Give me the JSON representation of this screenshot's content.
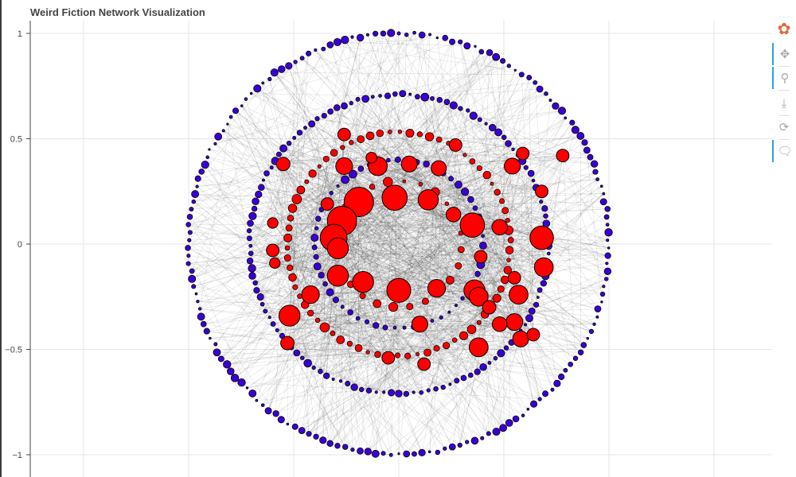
{
  "chart_data": {
    "type": "scatter",
    "title": "Weird Fiction Network Visualization",
    "xlim": [
      -1.8,
      1.8
    ],
    "ylim": [
      -1.05,
      1.05
    ],
    "y_ticks": [
      1,
      0.5,
      0,
      -0.5,
      -1
    ],
    "y_tick_labels": [
      "1",
      "0.5",
      "0",
      "−0.5",
      "−1"
    ],
    "x_grid": [
      -1.5,
      -1.0,
      -0.5,
      0,
      0.5,
      1.0,
      1.5
    ],
    "grid": true,
    "edges": {
      "color": "#000000",
      "count_approx": 1500
    },
    "node_series": [
      {
        "color": "#ff0000",
        "outline": "#000000",
        "description": "red nodes, sized by degree"
      },
      {
        "color": "#3a00d6",
        "outline": "#000000",
        "description": "blue nodes, small"
      }
    ],
    "layout": "shell",
    "shells": [
      {
        "radius": 1.0,
        "count": 170,
        "color": "#3a00d6"
      },
      {
        "radius": 0.71,
        "count": 125,
        "color": "#3a00d6"
      },
      {
        "radius": 0.53,
        "count": 70,
        "color": "#ff0000"
      },
      {
        "radius": 0.4,
        "count": 55,
        "color": "#3a00d6"
      },
      {
        "radius": 0.3,
        "count": 24,
        "color": "#ff0000"
      }
    ],
    "large_nodes": [
      {
        "x": -0.26,
        "y": 0.37,
        "r": 0.04
      },
      {
        "x": -0.1,
        "y": 0.37,
        "r": 0.045
      },
      {
        "x": 0.05,
        "y": 0.38,
        "r": 0.038
      },
      {
        "x": 0.19,
        "y": 0.36,
        "r": 0.036
      },
      {
        "x": -0.19,
        "y": 0.2,
        "r": 0.07
      },
      {
        "x": -0.02,
        "y": 0.22,
        "r": 0.06
      },
      {
        "x": 0.14,
        "y": 0.21,
        "r": 0.048
      },
      {
        "x": 0.26,
        "y": 0.14,
        "r": 0.035
      },
      {
        "x": -0.27,
        "y": 0.11,
        "r": 0.07
      },
      {
        "x": -0.31,
        "y": 0.03,
        "r": 0.064
      },
      {
        "x": -0.29,
        "y": -0.02,
        "r": 0.05
      },
      {
        "x": 0.35,
        "y": 0.09,
        "r": 0.058
      },
      {
        "x": 0.68,
        "y": 0.03,
        "r": 0.056
      },
      {
        "x": 0.48,
        "y": 0.08,
        "r": 0.037
      },
      {
        "x": -0.29,
        "y": -0.15,
        "r": 0.05
      },
      {
        "x": -0.42,
        "y": -0.24,
        "r": 0.042
      },
      {
        "x": 0.0,
        "y": -0.22,
        "r": 0.057
      },
      {
        "x": -0.17,
        "y": -0.18,
        "r": 0.05
      },
      {
        "x": 0.36,
        "y": -0.22,
        "r": 0.05
      },
      {
        "x": 0.18,
        "y": -0.21,
        "r": 0.042
      },
      {
        "x": 0.69,
        "y": -0.11,
        "r": 0.045
      },
      {
        "x": 0.38,
        "y": -0.25,
        "r": 0.045
      },
      {
        "x": -0.52,
        "y": -0.34,
        "r": 0.05
      },
      {
        "x": 0.57,
        "y": -0.24,
        "r": 0.045
      },
      {
        "x": -0.53,
        "y": -0.47,
        "r": 0.032
      },
      {
        "x": 0.55,
        "y": -0.37,
        "r": 0.04
      },
      {
        "x": 0.1,
        "y": -0.38,
        "r": 0.038
      },
      {
        "x": 0.48,
        "y": -0.38,
        "r": 0.035
      },
      {
        "x": 0.58,
        "y": -0.45,
        "r": 0.038
      },
      {
        "x": 0.38,
        "y": -0.49,
        "r": 0.045
      },
      {
        "x": 0.12,
        "y": -0.57,
        "r": 0.03
      },
      {
        "x": -0.05,
        "y": -0.54,
        "r": 0.03
      },
      {
        "x": 0.43,
        "y": -0.3,
        "r": 0.032
      },
      {
        "x": 0.64,
        "y": -0.43,
        "r": 0.03
      },
      {
        "x": -0.26,
        "y": 0.52,
        "r": 0.03
      },
      {
        "x": -0.55,
        "y": 0.38,
        "r": 0.032
      },
      {
        "x": 0.59,
        "y": 0.43,
        "r": 0.03
      },
      {
        "x": 0.54,
        "y": 0.37,
        "r": 0.038
      },
      {
        "x": 0.27,
        "y": 0.47,
        "r": 0.03
      },
      {
        "x": 0.68,
        "y": 0.25,
        "r": 0.03
      },
      {
        "x": -0.34,
        "y": 0.19,
        "r": 0.03
      },
      {
        "x": 0.55,
        "y": -0.16,
        "r": 0.03
      },
      {
        "x": 0.39,
        "y": -0.06,
        "r": 0.03
      },
      {
        "x": -0.6,
        "y": 0.1,
        "r": 0.025
      },
      {
        "x": -0.6,
        "y": -0.03,
        "r": 0.03
      },
      {
        "x": -0.59,
        "y": -0.09,
        "r": 0.025
      },
      {
        "x": 0.78,
        "y": 0.42,
        "r": 0.03
      },
      {
        "x": -0.13,
        "y": 0.41,
        "r": 0.026
      }
    ]
  },
  "toolbar": {
    "items": [
      {
        "name": "bokeh-logo-icon",
        "glyph": "✿",
        "active": false,
        "color": "#e0663c"
      },
      {
        "name": "pan-tool-icon",
        "glyph": "✥",
        "active": true
      },
      {
        "name": "wheel-zoom-tool-icon",
        "glyph": "⚲",
        "active": true
      },
      {
        "name": "save-tool-icon",
        "glyph": "⤓",
        "active": false
      },
      {
        "name": "reset-tool-icon",
        "glyph": "⟳",
        "active": false
      },
      {
        "name": "hover-tool-icon",
        "glyph": "🗨",
        "active": true
      }
    ]
  }
}
